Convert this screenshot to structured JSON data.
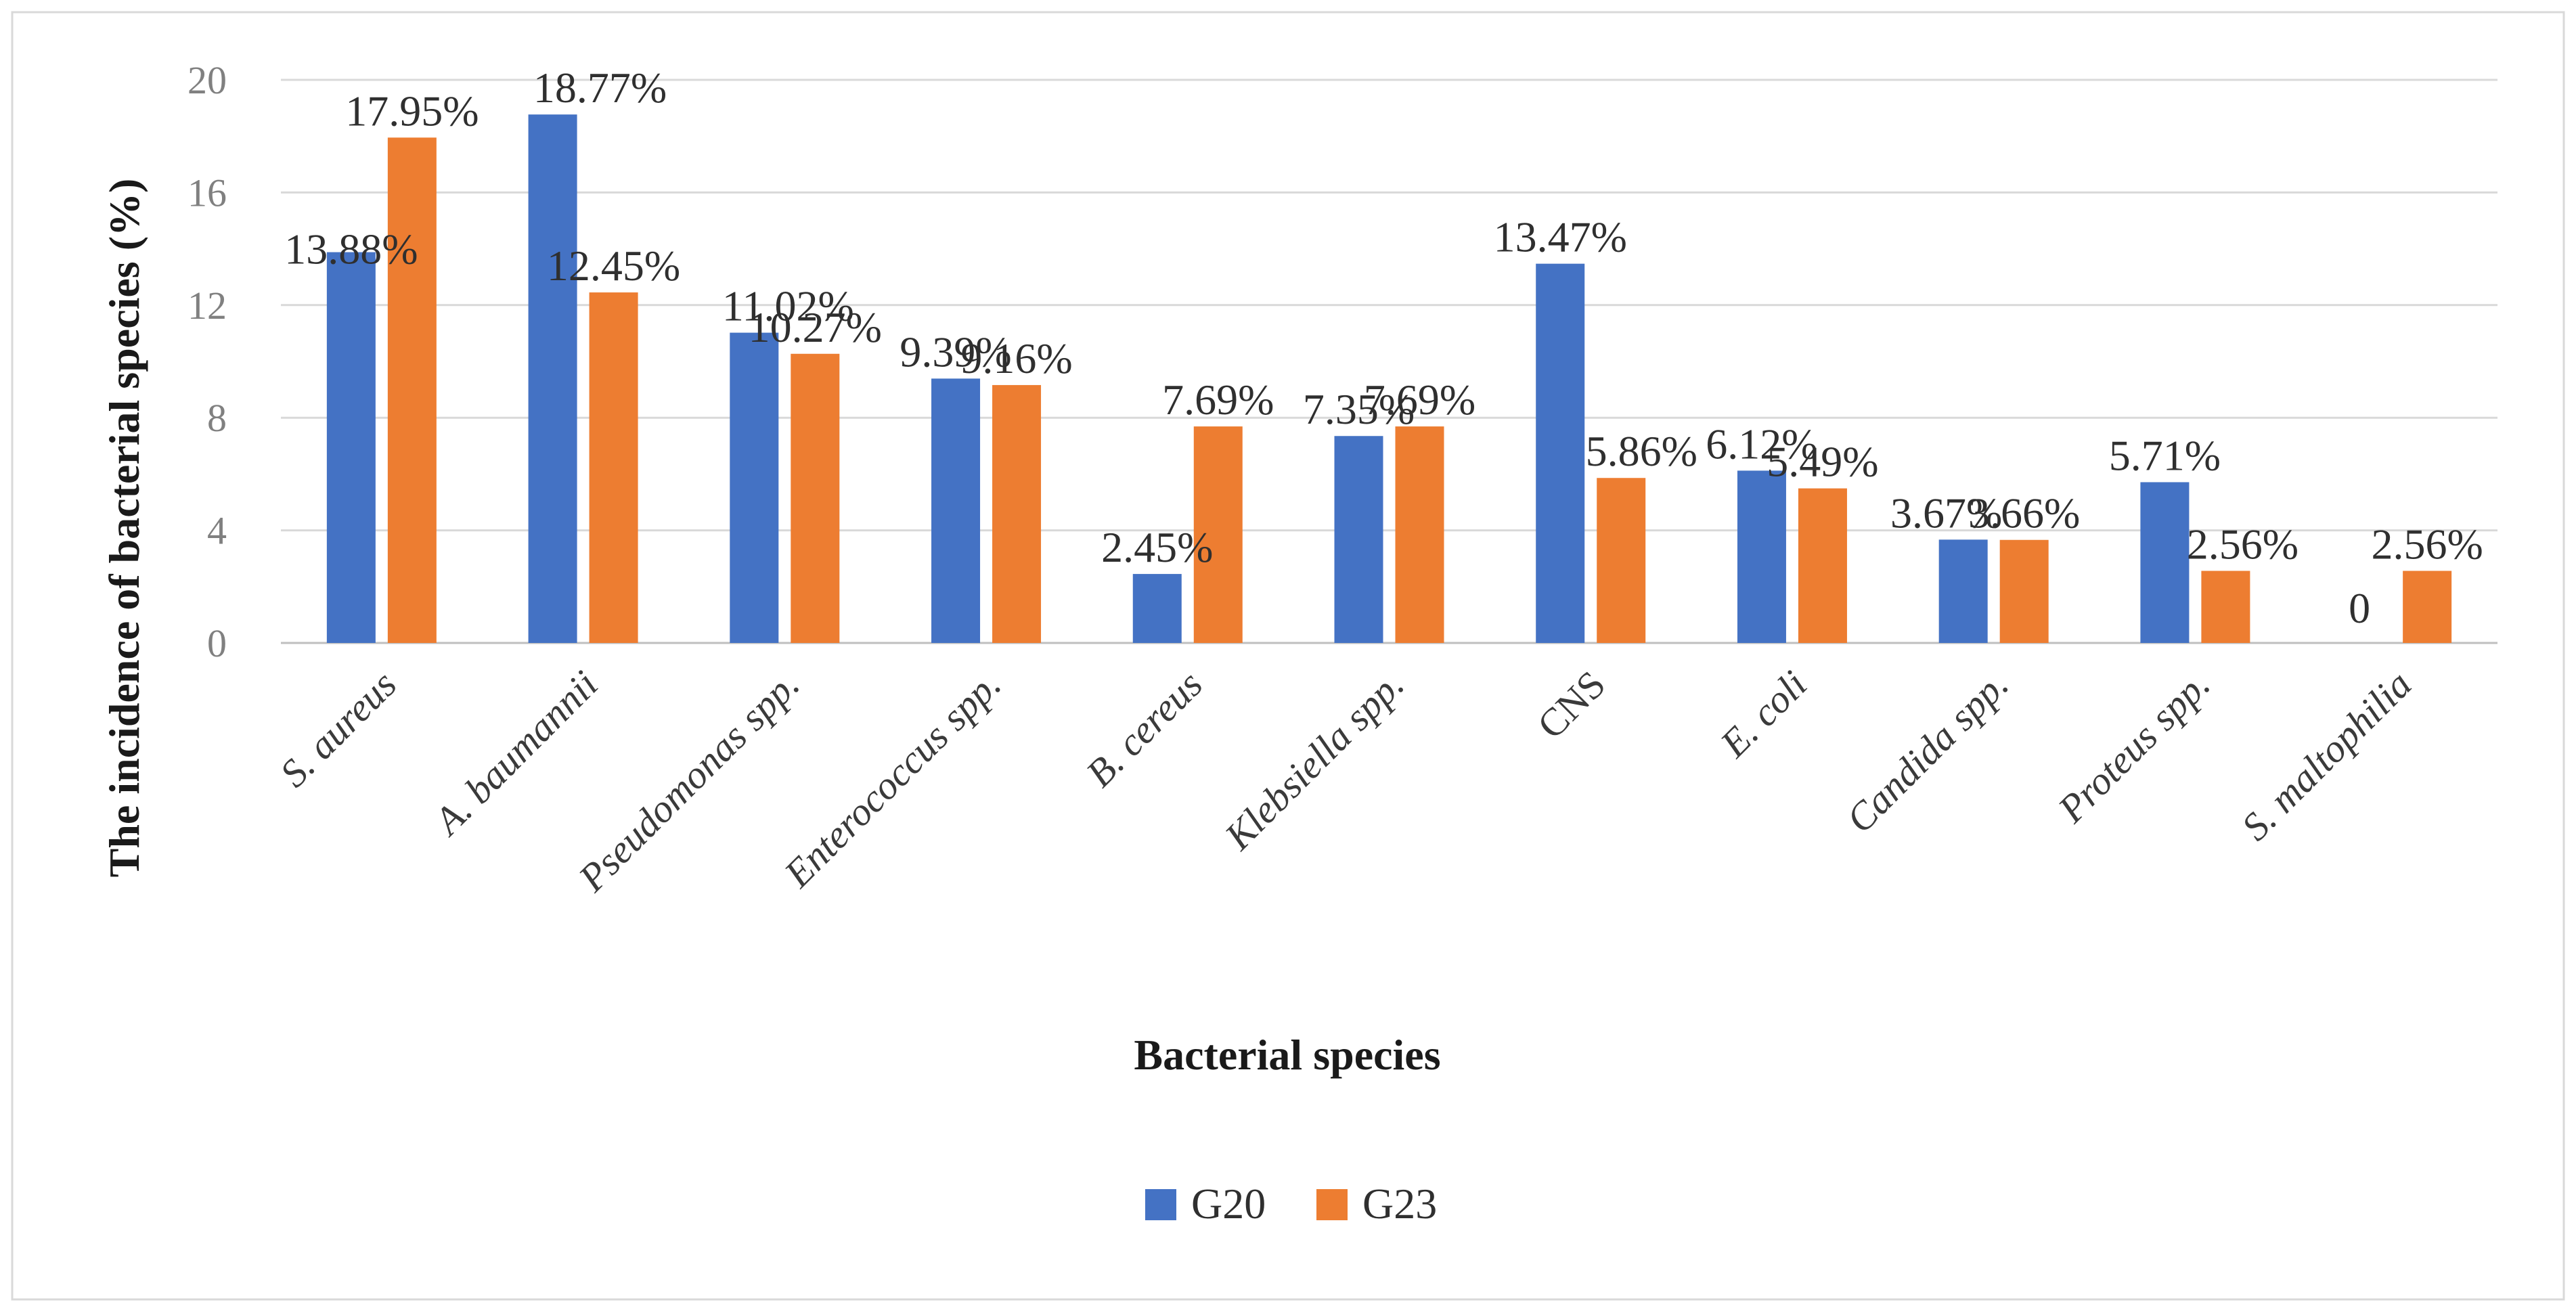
{
  "chart_data": {
    "type": "bar",
    "title": "",
    "xlabel": "Bacterial species",
    "ylabel": "The incidence  of bacterial  species (%)",
    "ylim": [
      0,
      20
    ],
    "yticks": [
      0,
      4,
      8,
      12,
      16,
      20
    ],
    "grid": true,
    "legend_position": "bottom",
    "categories": [
      "S. aureus",
      "A. baumannii",
      "Pseudomonas spp.",
      "Enterococcus spp.",
      "B. cereus",
      "Klebsiella spp.",
      "CNS",
      "E.  coli",
      "Candida spp.",
      "Proteus spp.",
      "S. maltophilia"
    ],
    "series": [
      {
        "name": "G20",
        "color": "#4472C4",
        "values": [
          13.88,
          18.77,
          11.02,
          9.39,
          2.45,
          7.35,
          13.47,
          6.12,
          3.67,
          5.71,
          0
        ],
        "labels": [
          "13.88%",
          "18.77%",
          "11.02%",
          "9.39%",
          "2.45%",
          "7.35%",
          "13.47%",
          "6.12%",
          "3.67%",
          "5.71%",
          "0"
        ]
      },
      {
        "name": "G23",
        "color": "#ED7D31",
        "values": [
          17.95,
          12.45,
          10.27,
          9.16,
          7.69,
          7.69,
          5.86,
          5.49,
          3.66,
          2.56,
          2.56
        ],
        "labels": [
          "17.95%",
          "12.45%",
          "10.27%",
          "9.16%",
          "7.69%",
          "7.69%",
          "5.86%",
          "5.49%",
          "3.66%",
          "2.56%",
          "2.56%"
        ]
      }
    ]
  }
}
